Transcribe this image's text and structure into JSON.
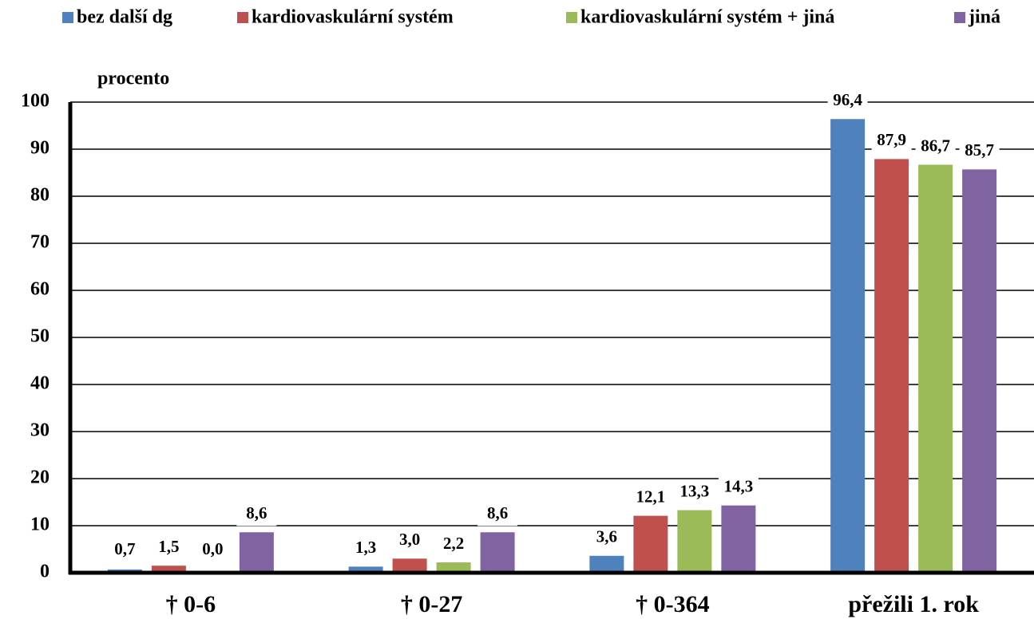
{
  "chart_data": {
    "type": "bar",
    "y_label": "procento",
    "categories": [
      "† 0-6",
      "† 0-27",
      "† 0-364",
      "přežili 1. rok"
    ],
    "series": [
      {
        "name": "bez další dg",
        "color": "#4f81bd",
        "values": [
          0.7,
          1.3,
          3.6,
          96.4
        ],
        "value_labels": [
          "0,7",
          "1,3",
          "3,6",
          "96,4"
        ]
      },
      {
        "name": "kardiovaskulární systém",
        "color": "#c0504d",
        "values": [
          1.5,
          3.0,
          12.1,
          87.9
        ],
        "value_labels": [
          "1,5",
          "3,0",
          "12,1",
          "87,9"
        ]
      },
      {
        "name": "kardiovaskulární systém + jiná",
        "color": "#9bbb59",
        "values": [
          0.0,
          2.2,
          13.3,
          86.7
        ],
        "value_labels": [
          "0,0",
          "2,2",
          "13,3",
          "86,7"
        ]
      },
      {
        "name": "jiná",
        "color": "#8064a2",
        "values": [
          8.6,
          8.6,
          14.3,
          85.7
        ],
        "value_labels": [
          "8,6",
          "8,6",
          "14,3",
          "85,7"
        ]
      }
    ],
    "ylim": [
      0,
      100
    ],
    "yticks": [
      0,
      10,
      20,
      30,
      40,
      50,
      60,
      70,
      80,
      90,
      100
    ],
    "grid": true,
    "legend": "top"
  }
}
